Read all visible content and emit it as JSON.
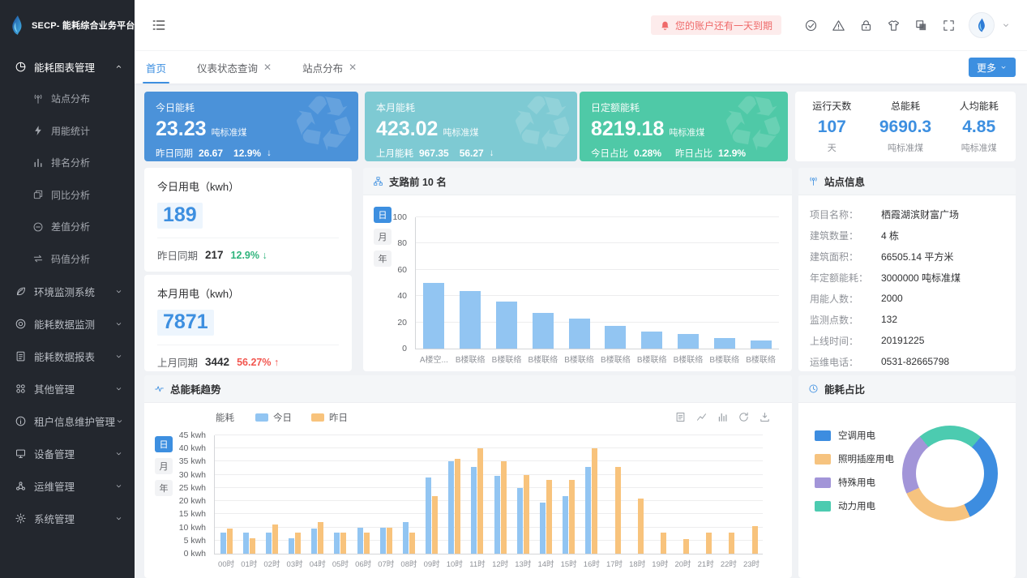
{
  "app": {
    "title": "SECP- 能耗综合业务平台"
  },
  "topbar": {
    "notice": {
      "text": "您的账户还有一天到期",
      "icon": "bell-icon"
    },
    "action_icons": [
      "approval-icon",
      "warning-icon",
      "lock-icon",
      "theme-icon",
      "copy-pages-icon",
      "fullscreen-icon"
    ],
    "avatar_icon": "water-drop-logo"
  },
  "tabbar": {
    "tabs": [
      {
        "label": "首页",
        "active": true,
        "closable": false
      },
      {
        "label": "仪表状态查询",
        "active": false,
        "closable": true
      },
      {
        "label": "站点分布",
        "active": false,
        "closable": true
      }
    ],
    "more_label": "更多"
  },
  "sidebar": {
    "sections": [
      {
        "label": "能耗图表管理",
        "icon": "pie-chart-icon",
        "expanded": true,
        "active": true,
        "children": [
          {
            "label": "站点分布",
            "icon": "antenna-icon"
          },
          {
            "label": "用能统计",
            "icon": "bolt-icon"
          },
          {
            "label": "排名分析",
            "icon": "rank-icon"
          },
          {
            "label": "同比分析",
            "icon": "sync-icon"
          },
          {
            "label": "差值分析",
            "icon": "minus-circle-icon"
          },
          {
            "label": "码值分析",
            "icon": "cycle-icon"
          }
        ]
      },
      {
        "label": "环境监测系统",
        "icon": "leaf-icon",
        "expanded": false
      },
      {
        "label": "能耗数据监测",
        "icon": "monitor-icon",
        "expanded": false
      },
      {
        "label": "能耗数据报表",
        "icon": "report-icon",
        "expanded": false
      },
      {
        "label": "其他管理",
        "icon": "grid-icon",
        "expanded": false
      },
      {
        "label": "租户信息维护管理",
        "icon": "info-icon",
        "expanded": false
      },
      {
        "label": "设备管理",
        "icon": "device-icon",
        "expanded": false
      },
      {
        "label": "运维管理",
        "icon": "ops-icon",
        "expanded": false
      },
      {
        "label": "系统管理",
        "icon": "gear-icon",
        "expanded": false
      }
    ]
  },
  "kpis": {
    "today": {
      "title": "今日能耗",
      "value": "23.23",
      "unit": "吨标准煤",
      "sub_label": "昨日同期",
      "sub_value": "26.67",
      "pct": "12.9%",
      "arrow": "↓",
      "color": "#4b92d9"
    },
    "month": {
      "title": "本月能耗",
      "value": "423.02",
      "unit": "吨标准煤",
      "sub_label": "上月能耗",
      "sub_value": "967.35",
      "pct": "56.27",
      "arrow": "↓",
      "color": "#7ecad3"
    },
    "quota": {
      "title": "日定额能耗",
      "value": "8219.18",
      "unit": "吨标准煤",
      "s1_label": "今日占比",
      "s1_value": "0.28%",
      "s2_label": "昨日占比",
      "s2_value": "12.9%",
      "color": "#4fc9a7"
    },
    "summary": [
      {
        "label": "运行天数",
        "value": "107",
        "unit": "天"
      },
      {
        "label": "总能耗",
        "value": "9690.3",
        "unit": "吨标准煤"
      },
      {
        "label": "人均能耗",
        "value": "4.85",
        "unit": "吨标准煤"
      }
    ]
  },
  "usage": {
    "today": {
      "title": "今日用电（kwh）",
      "value": "189",
      "sub_label": "昨日同期",
      "sub_value": "217",
      "pct": "12.9%",
      "arrow": "↓",
      "trend": "green"
    },
    "month": {
      "title": "本月用电（kwh）",
      "value": "7871",
      "sub_label": "上月同期",
      "sub_value": "3442",
      "pct": "56.27%",
      "arrow": "↑",
      "trend": "red"
    }
  },
  "panels": {
    "branch_rank": {
      "title": "支路前 10 名",
      "icon": "branch-icon",
      "period_buttons": [
        "日",
        "月",
        "年"
      ],
      "active_period": "日"
    },
    "site_info": {
      "title": "站点信息",
      "icon": "antenna-icon",
      "rows": [
        {
          "label": "项目名称：",
          "value": "栖霞湖滨财富广场"
        },
        {
          "label": "建筑数量：",
          "value": "4 栋"
        },
        {
          "label": "建筑面积：",
          "value": "66505.14 平方米"
        },
        {
          "label": "年定额能耗：",
          "value": "3000000 吨标准煤"
        },
        {
          "label": "用能人数：",
          "value": "2000"
        },
        {
          "label": "监测点数：",
          "value": "132"
        },
        {
          "label": "上线时间：",
          "value": "20191225"
        },
        {
          "label": "运维电话：",
          "value": "0531-82665798"
        }
      ]
    },
    "trend": {
      "title": "总能耗趋势",
      "icon": "pulse-icon",
      "period_buttons": [
        "日",
        "月",
        "年"
      ],
      "active_period": "日",
      "axis_name": "能耗",
      "legend": [
        {
          "label": "今日",
          "color": "#92c5f2"
        },
        {
          "label": "昨日",
          "color": "#f8c37c"
        }
      ],
      "toolbox": [
        "data-view-icon",
        "line-chart-icon",
        "bar-chart-icon",
        "restore-icon",
        "download-icon"
      ]
    },
    "ratio": {
      "title": "能耗占比",
      "icon": "clock-icon",
      "legend": [
        {
          "label": "空调用电",
          "color": "#3d8de0"
        },
        {
          "label": "照明插座用电",
          "color": "#f6c37f"
        },
        {
          "label": "特殊用电",
          "color": "#a295d8"
        },
        {
          "label": "动力用电",
          "color": "#4ccbb0"
        }
      ]
    }
  },
  "chart_data": [
    {
      "id": "branch_rank",
      "type": "bar",
      "title": "支路前 10 名",
      "categories": [
        "A楼空...",
        "B楼联络",
        "B楼联络",
        "B楼联络",
        "B楼联络",
        "B楼联络",
        "B楼联络",
        "B楼联络",
        "B楼联络",
        "B楼联络"
      ],
      "values": [
        50,
        44,
        36,
        27,
        23,
        17,
        13,
        11,
        8,
        6
      ],
      "xlabel": "",
      "ylabel": "",
      "ylim": [
        0,
        100
      ],
      "yticks": [
        0,
        20,
        40,
        60,
        80,
        100
      ],
      "bar_color": "#92c5f2",
      "grid": true,
      "legend_position": "none"
    },
    {
      "id": "trend",
      "type": "bar",
      "title": "总能耗趋势",
      "ylabel": "能耗",
      "y_unit": "kwh",
      "categories": [
        "00时",
        "01时",
        "02时",
        "03时",
        "04时",
        "05时",
        "06时",
        "07时",
        "08时",
        "09时",
        "10时",
        "11时",
        "12时",
        "13时",
        "14时",
        "15时",
        "16时",
        "17时",
        "18时",
        "19时",
        "20时",
        "21时",
        "22时",
        "23时"
      ],
      "series": [
        {
          "name": "今日",
          "color": "#92c5f2",
          "values": [
            8,
            8,
            8,
            6,
            9.5,
            8,
            10,
            10,
            12,
            29,
            35,
            33,
            29.5,
            25,
            19.5,
            22,
            33,
            0,
            0,
            0,
            0,
            0,
            0,
            0
          ]
        },
        {
          "name": "昨日",
          "color": "#f8c37c",
          "values": [
            9.5,
            6,
            11,
            8,
            12,
            8,
            8,
            10,
            8,
            22,
            36,
            40,
            35,
            30,
            28,
            28,
            40,
            33,
            21,
            8,
            5.5,
            8,
            8,
            10.5
          ]
        }
      ],
      "ylim": [
        0,
        45
      ],
      "ytick_step": 5,
      "grid": true,
      "legend_position": "top"
    },
    {
      "id": "ratio",
      "type": "pie",
      "title": "能耗占比",
      "labels": [
        "空调用电",
        "照明插座用电",
        "特殊用电",
        "动力用电"
      ],
      "values": [
        32,
        25,
        21,
        22
      ],
      "colors": [
        "#3d8de0",
        "#f6c37f",
        "#a295d8",
        "#4ccbb0"
      ],
      "start_angle": 40,
      "donut": true,
      "legend_position": "left"
    }
  ]
}
